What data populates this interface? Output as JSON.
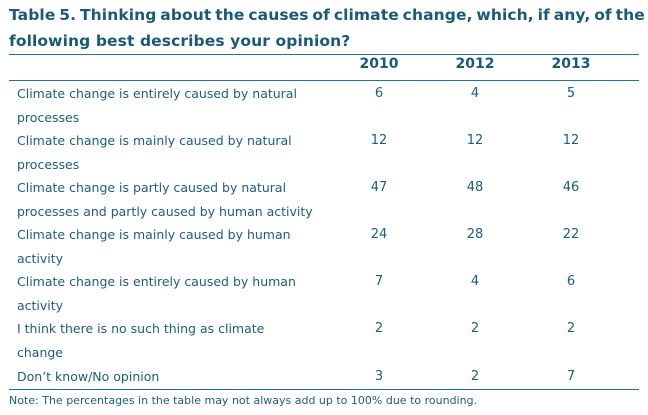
{
  "table": {
    "title_line1": [
      "Table",
      "5.",
      "Thinking",
      "about",
      "the",
      "causes",
      "of",
      "climate",
      "change,",
      "which,",
      "if",
      "any,",
      "of",
      "the"
    ],
    "title_line2": "following best describes your opinion?",
    "columns": [
      "2010",
      "2012",
      "2013"
    ],
    "rows": [
      {
        "label": "Climate change is entirely caused by natural",
        "label_cont": "processes",
        "values": [
          "6",
          "4",
          "5"
        ]
      },
      {
        "label": "Climate change is mainly caused by natural",
        "label_cont": "processes",
        "values": [
          "12",
          "12",
          "12"
        ]
      },
      {
        "label": "Climate change is partly caused by natural",
        "label_cont": "processes and partly caused by human activity",
        "values": [
          "47",
          "48",
          "46"
        ]
      },
      {
        "label": "Climate change is mainly caused by human",
        "label_cont": "activity",
        "values": [
          "24",
          "28",
          "22"
        ]
      },
      {
        "label": "Climate change is entirely caused by human",
        "label_cont": "activity",
        "values": [
          "7",
          "4",
          "6"
        ]
      },
      {
        "label": "I think there is no such thing as climate",
        "label_cont": "change",
        "values": [
          "2",
          "2",
          "2"
        ]
      },
      {
        "label": "Don’t know/No opinion",
        "label_cont": "",
        "values": [
          "3",
          "2",
          "7"
        ]
      }
    ],
    "note": "Note: The percentages in the table may not always add up to 100% due to rounding."
  }
}
